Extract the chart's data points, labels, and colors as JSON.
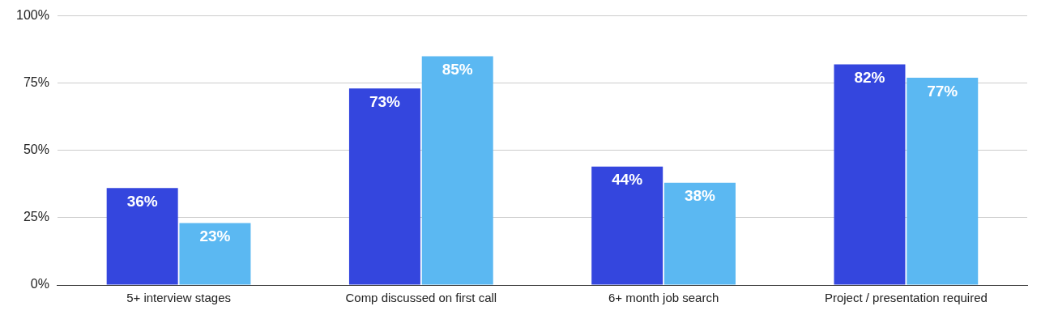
{
  "chart_data": {
    "type": "bar",
    "categories": [
      "5+ interview stages",
      "Comp discussed on first call",
      "6+ month job search",
      "Project / presentation required"
    ],
    "series": [
      {
        "color": "#3446de",
        "values": [
          36,
          73,
          44,
          82
        ],
        "value_labels": [
          "36%",
          "73%",
          "44%",
          "82%"
        ]
      },
      {
        "color": "#5bb8f2",
        "values": [
          23,
          85,
          38,
          77
        ],
        "value_labels": [
          "23%",
          "85%",
          "38%",
          "77%"
        ]
      }
    ],
    "ylim": [
      0,
      100
    ],
    "yticks": [
      {
        "value": 0,
        "label": "0%"
      },
      {
        "value": 25,
        "label": "25%"
      },
      {
        "value": 50,
        "label": "50%"
      },
      {
        "value": 75,
        "label": "75%"
      },
      {
        "value": 100,
        "label": "100%"
      }
    ],
    "grid": "y",
    "legend": false
  }
}
